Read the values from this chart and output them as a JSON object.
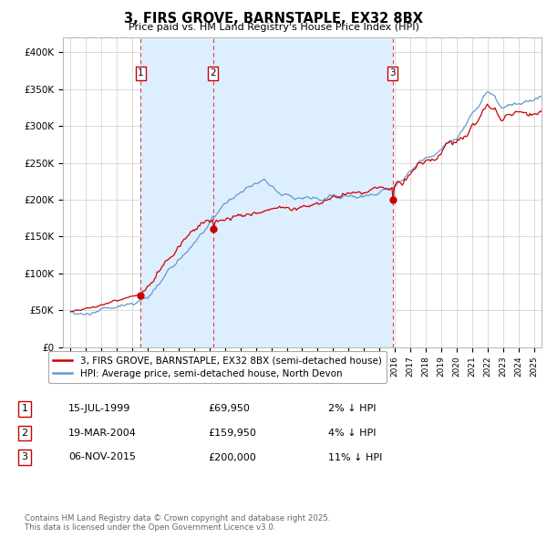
{
  "title": "3, FIRS GROVE, BARNSTAPLE, EX32 8BX",
  "subtitle": "Price paid vs. HM Land Registry's House Price Index (HPI)",
  "xlim": [
    1994.5,
    2025.5
  ],
  "ylim": [
    0,
    420000
  ],
  "yticks": [
    0,
    50000,
    100000,
    150000,
    200000,
    250000,
    300000,
    350000,
    400000
  ],
  "ytick_labels": [
    "£0",
    "£50K",
    "£100K",
    "£150K",
    "£200K",
    "£250K",
    "£300K",
    "£350K",
    "£400K"
  ],
  "sale_color": "#cc0000",
  "hpi_color": "#6699cc",
  "vline_color": "#dd4444",
  "shade_color": "#ddeeff",
  "sale_dates": [
    1999.54,
    2004.22,
    2015.85
  ],
  "sale_prices": [
    69950,
    159950,
    200000
  ],
  "sale_labels": [
    "1",
    "2",
    "3"
  ],
  "legend_sale_label": "3, FIRS GROVE, BARNSTAPLE, EX32 8BX (semi-detached house)",
  "legend_hpi_label": "HPI: Average price, semi-detached house, North Devon",
  "table_rows": [
    [
      "1",
      "15-JUL-1999",
      "£69,950",
      "2% ↓ HPI"
    ],
    [
      "2",
      "19-MAR-2004",
      "£159,950",
      "4% ↓ HPI"
    ],
    [
      "3",
      "06-NOV-2015",
      "£200,000",
      "11% ↓ HPI"
    ]
  ],
  "footnote": "Contains HM Land Registry data © Crown copyright and database right 2025.\nThis data is licensed under the Open Government Licence v3.0."
}
